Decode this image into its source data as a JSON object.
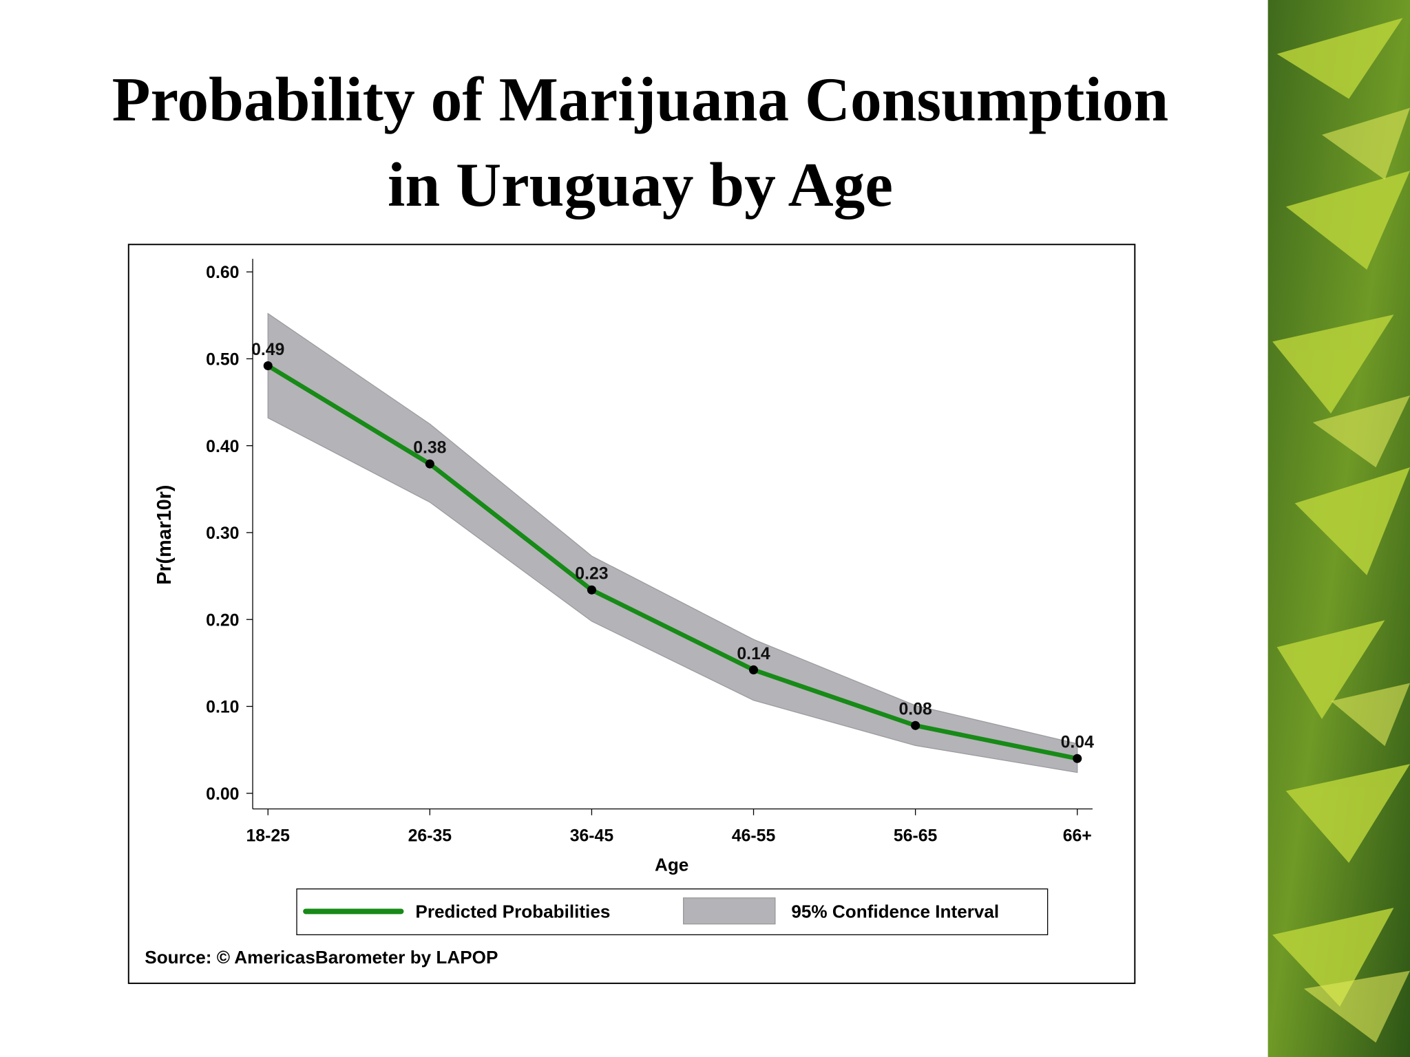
{
  "chart_data": {
    "type": "line",
    "title": [
      "Probability of Marijuana Consumption",
      "in Uruguay by Age"
    ],
    "x_label": "Age",
    "y_label": "Pr(mar10r)",
    "source": "Source: © AmericasBarometer by LAPOP",
    "categories": [
      "18-25",
      "26-35",
      "36-45",
      "46-55",
      "56-65",
      "66+"
    ],
    "series": [
      {
        "name": "Predicted Probabilities",
        "color": "#178a17",
        "values": [
          0.492,
          0.379,
          0.234,
          0.142,
          0.078,
          0.04
        ],
        "value_labels": [
          "0.49",
          "0.38",
          "0.23",
          "0.14",
          "0.08",
          "0.04"
        ]
      },
      {
        "name": "95% Confidence Interval",
        "color": "#b4b3b7",
        "upper": [
          0.552,
          0.425,
          0.273,
          0.177,
          0.101,
          0.057
        ],
        "lower": [
          0.432,
          0.335,
          0.198,
          0.107,
          0.055,
          0.024
        ]
      }
    ],
    "ylim": [
      -0.018,
      0.615
    ],
    "yticks": [
      {
        "value": 0,
        "label": "0.00"
      },
      {
        "value": 0.1,
        "label": "0.10"
      },
      {
        "value": 0.2,
        "label": "0.20"
      },
      {
        "value": 0.3,
        "label": "0.30"
      },
      {
        "value": 0.4,
        "label": "0.40"
      },
      {
        "value": 0.5,
        "label": "0.50"
      },
      {
        "value": 0.6,
        "label": "0.60"
      }
    ]
  }
}
